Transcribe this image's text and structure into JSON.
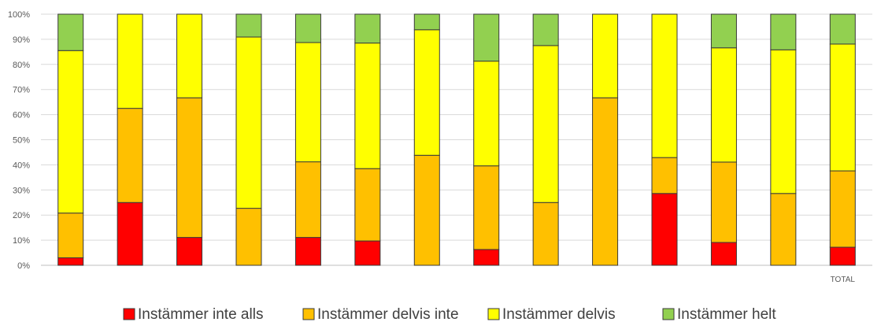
{
  "chart_data": {
    "type": "bar",
    "stacked": true,
    "percent_stacked": true,
    "categories": [
      "",
      "",
      "",
      "",
      "",
      "",
      "",
      "",
      "",
      "",
      "",
      "",
      "",
      "TOTAL"
    ],
    "series": [
      {
        "name": "Instämmer inte alls",
        "color": "#ff0000",
        "values": [
          3,
          25,
          11.1,
          0,
          11.1,
          9.7,
          0,
          6.3,
          0,
          0,
          28.6,
          9.1,
          0,
          7.2
        ]
      },
      {
        "name": "Instämmer delvis inte",
        "color": "#ffc000",
        "values": [
          17.8,
          37.5,
          55.6,
          22.7,
          30.1,
          28.8,
          43.8,
          33.3,
          25,
          66.7,
          14.3,
          32,
          28.6,
          30.4
        ]
      },
      {
        "name": "Instämmer delvis",
        "color": "#ffff00",
        "values": [
          64.7,
          37.5,
          33.3,
          68.2,
          47.5,
          50,
          50,
          41.7,
          62.5,
          33.3,
          57.1,
          45.5,
          57.2,
          50.5
        ]
      },
      {
        "name": "Instämmer helt",
        "color": "#92d050",
        "values": [
          14.5,
          0,
          0,
          9.1,
          11.3,
          11.5,
          6.2,
          18.7,
          12.5,
          0,
          0,
          13.4,
          14.2,
          11.9
        ]
      }
    ],
    "ylim": [
      0,
      100
    ],
    "yticks": [
      "0%",
      "10%",
      "20%",
      "30%",
      "40%",
      "50%",
      "60%",
      "70%",
      "80%",
      "90%",
      "100%"
    ],
    "grid": true,
    "legend": "bottom",
    "title": "",
    "xlabel": "",
    "ylabel": ""
  }
}
